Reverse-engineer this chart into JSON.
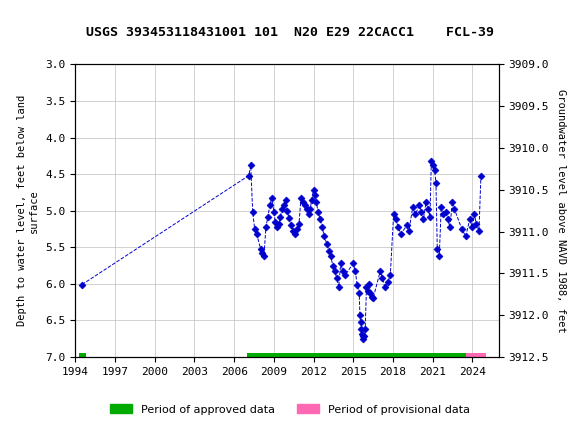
{
  "title": "USGS 393453118431001 101  N20 E29 22CACC1    FCL-39",
  "ylabel_left": "Depth to water level, feet below land\nsurface",
  "ylabel_right": "Groundwater level above NAVD 1988, feet",
  "xlabel": "",
  "ylim_left": [
    3.0,
    7.0
  ],
  "ylim_right": [
    3909.0,
    3912.5
  ],
  "xlim": [
    1994,
    2026
  ],
  "xticks": [
    1994,
    1997,
    2000,
    2003,
    2006,
    2009,
    2012,
    2015,
    2018,
    2021,
    2024
  ],
  "yticks_left": [
    3.0,
    3.5,
    4.0,
    4.5,
    5.0,
    5.5,
    6.0,
    6.5,
    7.0
  ],
  "yticks_right": [
    3909.0,
    3909.5,
    3910.0,
    3910.5,
    3911.0,
    3911.5,
    3912.0,
    3912.5
  ],
  "data_color": "#0000CD",
  "grid_color": "#C0C0C0",
  "background_color": "#FFFFFF",
  "header_color": "#006633",
  "approved_color": "#00AA00",
  "provisional_color": "#FF69B4",
  "approved_bar_start": 2007.0,
  "approved_bar_end": 2023.5,
  "provisional_bar_start": 2023.5,
  "provisional_bar_end": 2025.0,
  "marker_1994_x": 1994.5,
  "marker_1994_y": 6.01,
  "data_x": [
    2007.2,
    2007.4,
    2007.5,
    2007.6,
    2008.0,
    2008.2,
    2008.4,
    2008.6,
    2008.8,
    2009.0,
    2009.2,
    2009.4,
    2009.5,
    2009.6,
    2009.8,
    2010.0,
    2010.2,
    2010.4,
    2010.6,
    2010.8,
    2011.0,
    2011.2,
    2011.4,
    2011.6,
    2011.8,
    2012.0,
    2012.2,
    2012.4,
    2012.6,
    2012.8,
    2013.0,
    2013.2,
    2013.4,
    2013.6,
    2013.8,
    2014.0,
    2014.2,
    2014.4,
    2015.0,
    2015.2,
    2015.4,
    2015.5,
    2015.6,
    2015.7,
    2015.8,
    2015.9,
    2016.0,
    2016.1,
    2016.2,
    2016.3,
    2016.4,
    2017.0,
    2017.2,
    2017.4,
    2017.6,
    2018.0,
    2018.2,
    2018.4,
    2019.0,
    2019.2,
    2020.0,
    2020.2,
    2020.4,
    2020.6,
    2020.8,
    2021.0,
    2021.2,
    2021.4,
    2021.6,
    2021.8,
    2022.0,
    2022.2,
    2022.4,
    2023.0,
    2023.2,
    2024.0,
    2024.2
  ],
  "data_y": [
    4.5,
    4.35,
    5.0,
    5.3,
    5.5,
    5.6,
    5.55,
    5.2,
    5.0,
    4.8,
    5.0,
    5.1,
    5.2,
    5.05,
    4.9,
    5.0,
    5.15,
    5.3,
    5.25,
    5.1,
    4.8,
    4.85,
    4.9,
    4.95,
    5.0,
    4.7,
    4.75,
    4.85,
    5.0,
    5.1,
    5.2,
    5.3,
    5.4,
    5.55,
    5.6,
    5.7,
    5.8,
    5.85,
    5.7,
    5.8,
    6.0,
    6.1,
    6.4,
    6.5,
    6.55,
    6.6,
    6.0,
    6.05,
    5.95,
    6.1,
    6.15,
    5.8,
    5.9,
    6.0,
    5.95,
    5.0,
    5.1,
    5.2,
    5.15,
    5.2,
    4.9,
    5.0,
    5.1,
    4.85,
    4.95,
    4.3,
    4.4,
    4.6,
    5.5,
    5.6,
    5.0,
    5.1,
    5.2,
    5.3,
    5.35,
    4.5,
    5.1
  ],
  "legend_approved": "Period of approved data",
  "legend_provisional": "Period of provisional data"
}
